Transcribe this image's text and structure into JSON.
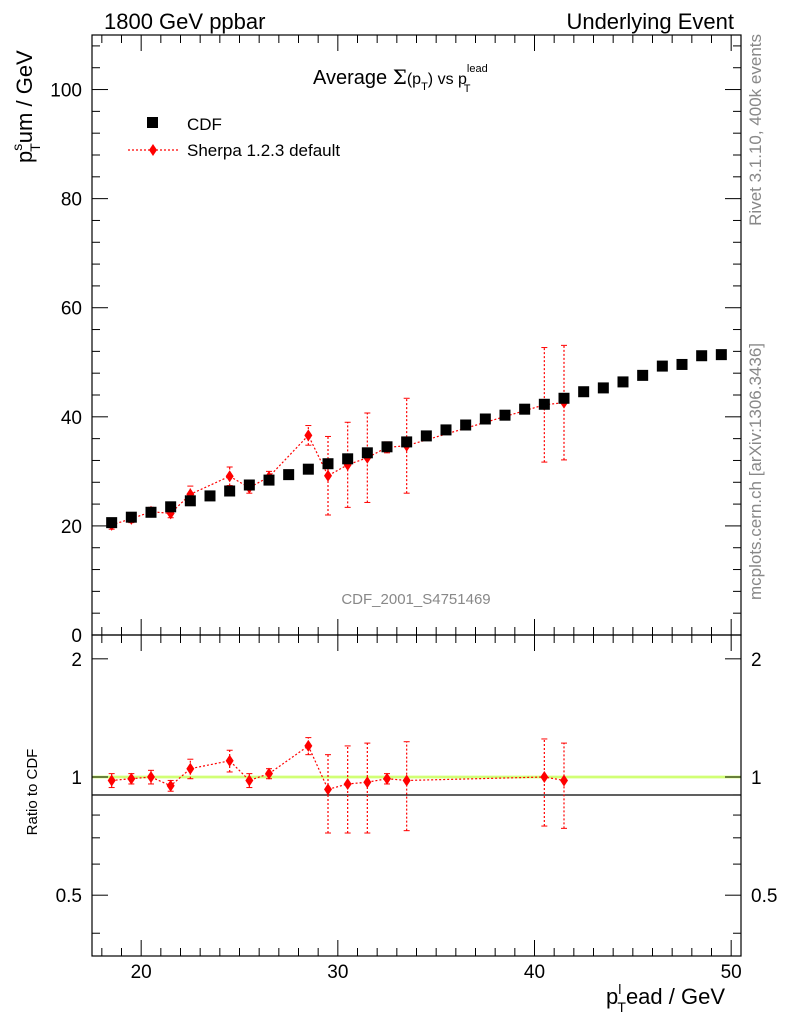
{
  "header": {
    "left": "1800 GeV ppbar",
    "right": "Underlying Event"
  },
  "side_labels": {
    "rivet": "Rivet 3.1.10,  400k events",
    "mcplots": "mcplots.cern.ch [arXiv:1306.3436]"
  },
  "chart_data": [
    {
      "type": "scatter",
      "title": "Average Σ(pT) vs pT^lead",
      "title_parts": {
        "pre": "Average ",
        "sigma": "Σ",
        "open": "(p",
        "sub1": "T",
        "close": ") vs p",
        "sup2": "lead",
        "sub2": "T"
      },
      "ylabel": "pT^sum / GeV",
      "ylabel_parts": {
        "p": "p",
        "sup": "s",
        "sub": "T",
        "rest": "um / GeV"
      },
      "analysis_tag": "CDF_2001_S4751469",
      "xlim": [
        17.5,
        50.5
      ],
      "ylim": [
        0,
        110
      ],
      "yticks": [
        0,
        20,
        40,
        60,
        80,
        100
      ],
      "legend_position": "top-left",
      "series": [
        {
          "name": "CDF",
          "marker": "square",
          "color": "#000000",
          "x": [
            18.5,
            19.5,
            20.5,
            21.5,
            22.5,
            23.5,
            24.5,
            25.5,
            26.5,
            27.5,
            28.5,
            29.5,
            30.5,
            31.5,
            32.5,
            33.5,
            34.5,
            35.5,
            36.5,
            37.5,
            38.5,
            39.5,
            40.5,
            41.5,
            42.5,
            43.5,
            44.5,
            45.5,
            46.5,
            47.5,
            48.5,
            49.5
          ],
          "y": [
            20.6,
            21.6,
            22.5,
            23.5,
            24.6,
            25.5,
            26.4,
            27.5,
            28.4,
            29.4,
            30.4,
            31.4,
            32.3,
            33.4,
            34.5,
            35.4,
            36.5,
            37.6,
            38.5,
            39.6,
            40.3,
            41.4,
            42.3,
            43.4,
            44.6,
            45.3,
            46.4,
            47.6,
            49.3,
            49.6,
            51.2,
            51.4
          ]
        },
        {
          "name": "Sherpa 1.2.3 default",
          "marker": "diamond",
          "color": "#ff0000",
          "x": [
            18.5,
            19.5,
            20.5,
            21.5,
            22.5,
            24.5,
            25.5,
            26.5,
            28.5,
            29.5,
            30.5,
            31.5,
            32.5,
            33.5,
            40.5,
            41.5
          ],
          "y": [
            20.2,
            21.3,
            22.6,
            22.3,
            25.8,
            29.1,
            27.0,
            29.0,
            36.6,
            29.2,
            31.2,
            32.5,
            34.4,
            34.7,
            42.2,
            42.6
          ],
          "yerr": [
            0.8,
            0.7,
            0.8,
            0.8,
            1.5,
            1.7,
            1.0,
            1.0,
            1.8,
            7.2,
            7.8,
            8.2,
            1.0,
            8.7,
            10.5,
            10.5
          ]
        }
      ]
    },
    {
      "type": "scatter",
      "ylabel": "Ratio to CDF",
      "xlabel": "pT^lead / GeV",
      "xlabel_parts": {
        "p": "p",
        "sup": "l",
        "sub": "T",
        "rest": "ead / GeV"
      },
      "xlim": [
        17.5,
        50.5
      ],
      "ylim": [
        0.35,
        2.3
      ],
      "yticks": [
        0.5,
        1,
        2
      ],
      "ytick_labels": [
        "0.5",
        "1",
        "2"
      ],
      "xticks": [
        20,
        30,
        40,
        50
      ],
      "xtick_labels": [
        "20",
        "30",
        "40",
        "50"
      ],
      "reference_line": 1,
      "band_color": "#ccff66",
      "series": [
        {
          "name": "Sherpa 1.2.3 default",
          "x": [
            18.5,
            19.5,
            20.5,
            21.5,
            22.5,
            24.5,
            25.5,
            26.5,
            28.5,
            29.5,
            30.5,
            31.5,
            32.5,
            33.5,
            40.5,
            41.5
          ],
          "y": [
            0.98,
            0.99,
            1.0,
            0.95,
            1.05,
            1.1,
            0.98,
            1.02,
            1.2,
            0.93,
            0.96,
            0.97,
            0.99,
            0.98,
            1.0,
            0.98
          ],
          "yerr": [
            0.04,
            0.03,
            0.04,
            0.03,
            0.06,
            0.07,
            0.04,
            0.03,
            0.06,
            0.21,
            0.24,
            0.25,
            0.03,
            0.25,
            0.25,
            0.24
          ]
        }
      ]
    }
  ]
}
